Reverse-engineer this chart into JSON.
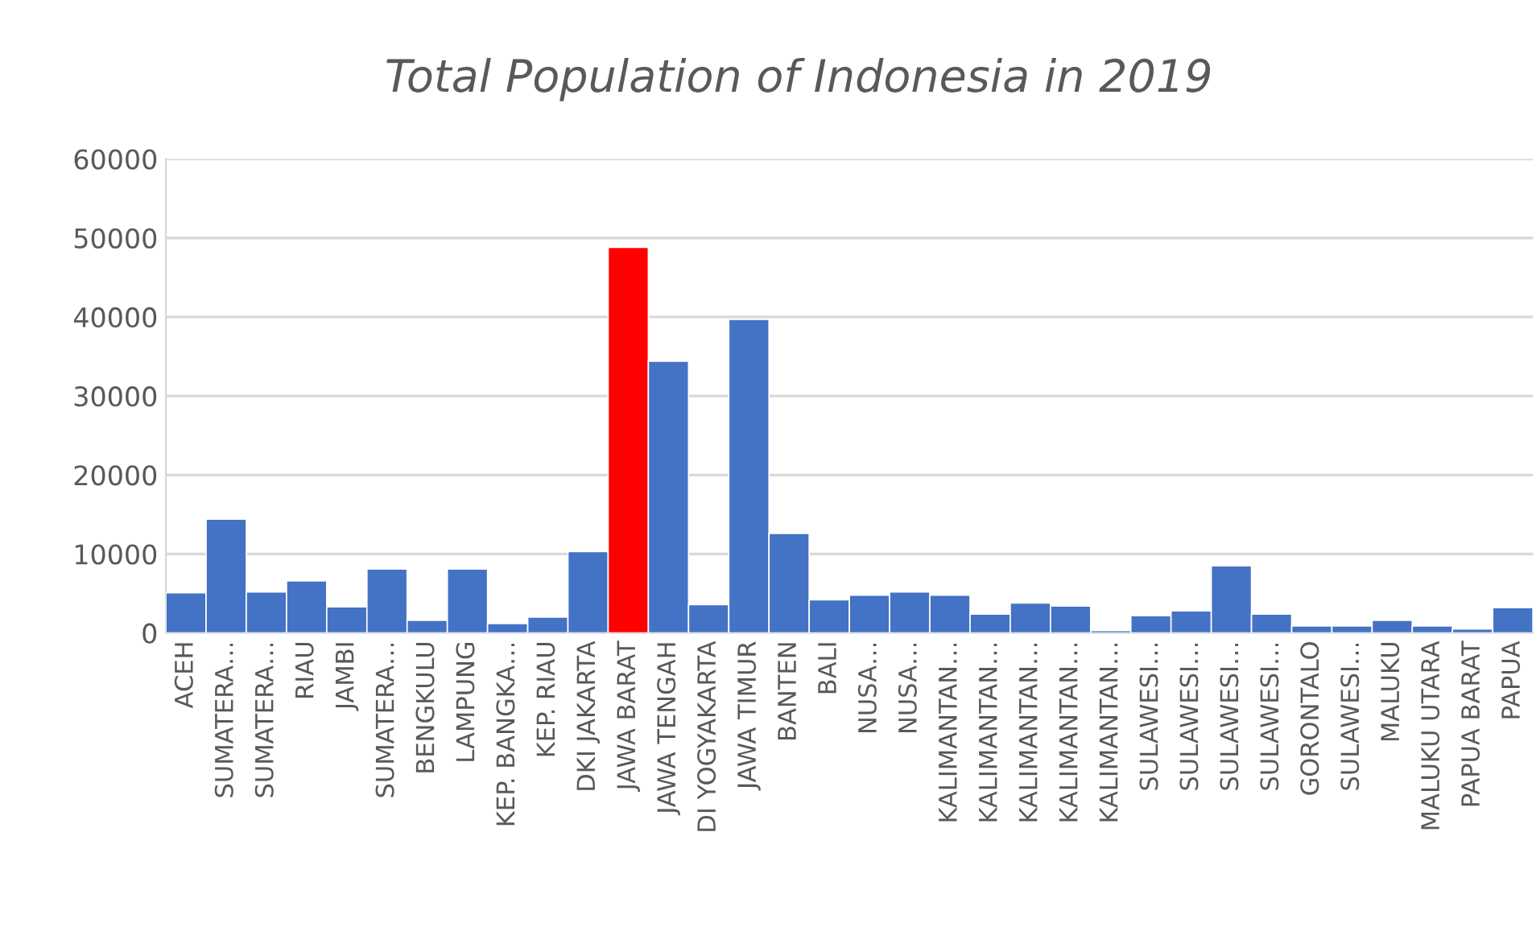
{
  "chart_data": {
    "type": "bar",
    "title": "Total Population of Indonesia in 2019",
    "categories": [
      "ACEH",
      "SUMATERA…",
      "SUMATERA…",
      "RIAU",
      "JAMBI",
      "SUMATERA…",
      "BENGKULU",
      "LAMPUNG",
      "KEP. BANGKA…",
      "KEP. RIAU",
      "DKI JAKARTA",
      "JAWA BARAT",
      "JAWA TENGAH",
      "DI YOGYAKARTA",
      "JAWA TIMUR",
      "BANTEN",
      "BALI",
      "NUSA…",
      "NUSA…",
      "KALIMANTAN…",
      "KALIMANTAN…",
      "KALIMANTAN…",
      "KALIMANTAN…",
      "KALIMANTAN…",
      "SULAWESI…",
      "SULAWESI…",
      "SULAWESI…",
      "SULAWESI…",
      "GORONTALO",
      "SULAWESI…",
      "MALUKU",
      "MALUKU UTARA",
      "PAPUA BARAT",
      "PAPUA"
    ],
    "values": [
      5100,
      14400,
      5200,
      6600,
      3300,
      8100,
      1600,
      8100,
      1200,
      2000,
      10300,
      48800,
      34400,
      3600,
      39700,
      12600,
      4200,
      4800,
      5200,
      4800,
      2400,
      3800,
      3400,
      300,
      2200,
      2800,
      8500,
      2400,
      900,
      900,
      1600,
      900,
      500,
      3200
    ],
    "colors": [
      "#4472c4",
      "#4472c4",
      "#4472c4",
      "#4472c4",
      "#4472c4",
      "#4472c4",
      "#4472c4",
      "#4472c4",
      "#4472c4",
      "#4472c4",
      "#4472c4",
      "#ff0000",
      "#4472c4",
      "#4472c4",
      "#4472c4",
      "#4472c4",
      "#4472c4",
      "#4472c4",
      "#4472c4",
      "#4472c4",
      "#4472c4",
      "#4472c4",
      "#4472c4",
      "#4472c4",
      "#4472c4",
      "#4472c4",
      "#4472c4",
      "#4472c4",
      "#4472c4",
      "#4472c4",
      "#4472c4",
      "#4472c4",
      "#4472c4",
      "#4472c4"
    ],
    "ylim": [
      0,
      60000
    ],
    "yticks": [
      0,
      10000,
      20000,
      30000,
      40000,
      50000,
      60000
    ],
    "grid": "y",
    "legend": false
  }
}
